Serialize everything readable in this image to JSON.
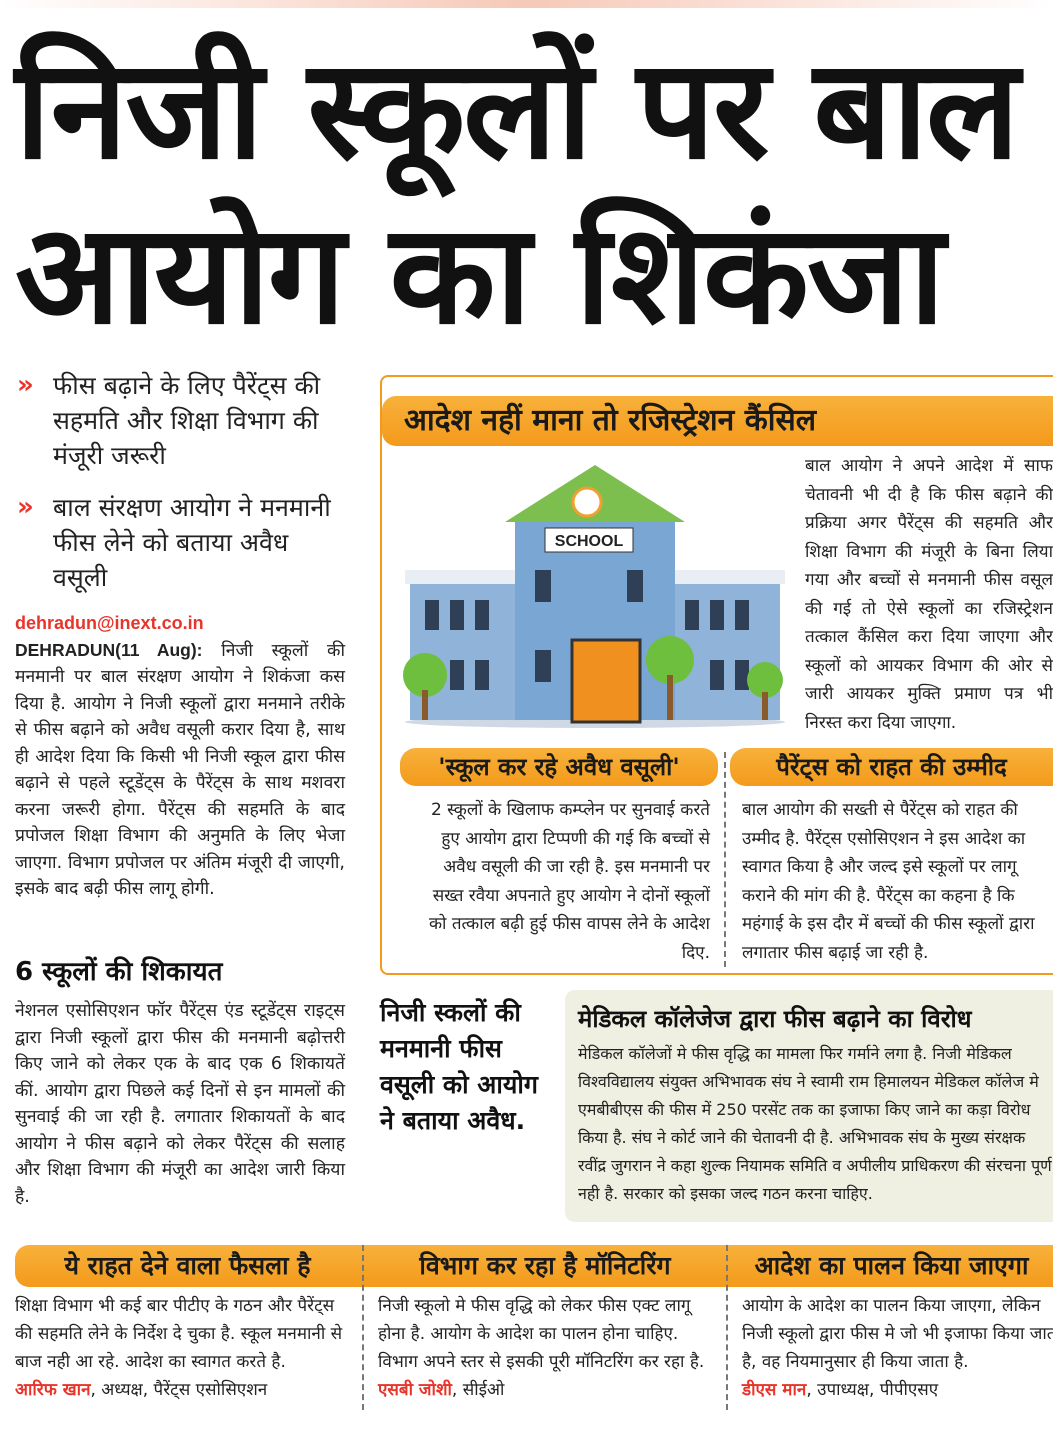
{
  "headline": {
    "line1": "निजी स्कूलों पर बाल",
    "line2": "आयोग का शिकंजा"
  },
  "bullets": [
    "फीस बढ़ाने के लिए पैरेंट्स की सहमति और शिक्षा विभाग की मंजूरी जरूरी",
    "बाल संरक्षण आयोग ने मनमानी फीस लेने को बताया अवैध वसूली"
  ],
  "byline": {
    "email": "dehradun@inext.co.in",
    "dateline": "DEHRADUN(11 Aug):",
    "text": "निजी स्कूलों की मनमानी पर बाल संरक्षण आयोग ने शिकंजा कस दिया है. आयोग ने निजी स्कूलों द्वारा मनमाने तरीके से फीस बढ़ाने को अवैध वसूली करार दिया है, साथ ही आदेश दिया कि किसी भी निजी स्कूल द्वारा फीस बढ़ाने से पहले स्टूडेंट्स के पैरेंट्स के साथ मशवरा करना जरूरी होगा. पैरेंट्स की सहमति के बाद प्रपोजल शिक्षा विभाग की अनुमति के लिए भेजा जाएगा. विभाग प्रपोजल पर अंतिम मंजूरी दी जाएगी, इसके बाद बढ़ी फीस लागू होगी."
  },
  "complaints": {
    "title": "6 स्कूलों की शिकायत",
    "text": "नेशनल एसोसिएशन फॉर पैरेंट्स एंड स्टूडेंट्स राइट्स द्वारा निजी स्कूलों द्वारा फीस की मनमानी बढ़ोत्तरी किए जाने को लेकर एक के बाद एक 6 शिकायतें कीं. आयोग द्वारा पिछले कई दिनों से इन मामलों की सुनवाई की जा रही है. लगातार शिकायतों के बाद आयोग ने फीस बढ़ाने को लेकर पैरेंट्स की सलाह और शिक्षा विभाग की मंजूरी का आदेश जारी किया है."
  },
  "box": {
    "title": "आदेश नहीं माना तो रजिस्ट्रेशन कैंसिल",
    "school_sign": "SCHOOL",
    "text": "बाल आयोग ने अपने आदेश में साफ चेतावनी भी दी है कि फीस बढ़ाने की प्रक्रिया अगर पैरेंट्स की सहमति और शिक्षा विभाग की मंजूरी के बिना लिया गया और बच्चों से मनमानी फीस वसूल की गई तो ऐसे स्कूलों का रजिस्ट्रेशन तत्काल कैंसिल करा दिया जाएगा और स्कूलों को आयकर विभाग की ओर से जारी आयकर मुक्ति प्रमाण पत्र भी निरस्त करा दिया जाएगा.",
    "left": {
      "title": "'स्कूल कर रहे अवैध वसूली'",
      "text": "2 स्कूलों के खिलाफ कम्प्लेन पर सुनवाई करते हुए आयोग द्वारा टिप्पणी की गई कि बच्चों से अवैध वसूली की जा रही है. इस मनमानी पर सख्त रवैया अपनाते हुए आयोग ने दोनों स्कूलों को तत्काल बढ़ी हुई फीस वापस लेने के आदेश दिए."
    },
    "right": {
      "title": "पैरेंट्स को राहत की उम्मीद",
      "text": "बाल आयोग की सख्ती से पैरेंट्स को राहत की उम्मीद है. पैरेंट्स एसोसिएशन ने इस आदेश का स्वागत किया है और जल्द इसे स्कूलों पर लागू कराने की मांग की है. पैरेंट्स का कहना है कि महंगाई के इस दौर में बच्चों की फीस स्कूलों द्वारा लगातार फीस बढ़ाई जा रही है."
    }
  },
  "pullquote": "निजी स्कलों की मनमानी फीस वसूली को आयोग ने बताया अवैध.",
  "medical": {
    "title": "मेडिकल कॉलेजेज द्वारा फीस बढ़ाने का विरोध",
    "text": "मेडिकल कॉलेजों मे फीस वृद्धि का मामला फिर गर्माने लगा है. निजी मेडिकल विश्वविद्यालय संयुक्त अभिभावक संघ ने स्वामी राम हिमालयन मेडिकल कॉलेज मे एमबीबीएस की फीस में 250 परसेंट तक का इजाफा किए जाने का कड़ा विरोध किया है. संघ ने कोर्ट जाने की चेतावनी दी है. अभिभावक संघ के मुख्य संरक्षक रवींद्र जुगरान ने कहा शुल्क नियामक समिति व अपीलीय प्राधिकरण की संरचना पूर्ण नही है. सरकार को इसका जल्द गठन करना चाहिए."
  },
  "quotes": [
    {
      "title": "ये राहत देने वाला फैसला है",
      "text": "शिक्षा विभाग भी कई बार पीटीए के गठन और पैरेंट्स की सहमति लेने के निर्देश दे चुका है. स्कूल मनमानी से बाज नही आ रहे. आदेश का स्वागत करते है.",
      "name": "आरिफ खान",
      "role": ", अध्यक्ष, पैरेंट्स एसोसिएशन"
    },
    {
      "title": "विभाग कर रहा है मॉनिटरिंग",
      "text": "निजी स्कूलो मे फीस वृद्धि को लेकर फीस एक्ट लागू होना है. आयोग के आदेश का पालन होना चाहिए. विभाग अपने स्तर से इसकी पूरी मॉनिटरिंग कर रहा है.",
      "name": "एसबी जोशी",
      "role": ", सीईओ"
    },
    {
      "title": "आदेश का पालन किया जाएगा",
      "text": "आयोग के आदेश का पालन किया जाएगा, लेकिन निजी स्कूलो द्वारा फीस मे जो भी इजाफा किया जाता है, वह नियमानुसार ही किया जाता है.",
      "name": "डीएस मान",
      "role": ", उपाध्यक्ष, पीपीएसए"
    }
  ],
  "colors": {
    "accent": "#f39a1b",
    "red": "#e8352b",
    "panel": "#efefe2"
  }
}
